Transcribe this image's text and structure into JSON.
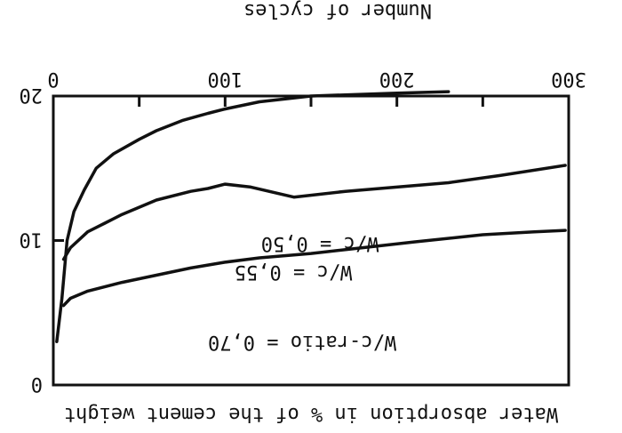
{
  "chart_data": {
    "type": "line",
    "xlabel": "Number of cycles",
    "ylabel": "Water absorption in % of the cement weight",
    "x_ticks": [
      0,
      100,
      200,
      300
    ],
    "y_ticks": [
      0,
      10,
      20
    ],
    "xlim": [
      0,
      300
    ],
    "ylim": [
      0,
      20
    ],
    "grid": false,
    "orientation": "displayed rotated 180 degrees (upside down)",
    "series": [
      {
        "name": "W/c = 0,50",
        "x": [
          6,
          10,
          20,
          40,
          60,
          80,
          100,
          120,
          150,
          180,
          210,
          250,
          280,
          298
        ],
        "y": [
          5.5,
          6.0,
          6.5,
          7.1,
          7.6,
          8.1,
          8.5,
          8.8,
          9.1,
          9.5,
          9.9,
          10.4,
          10.6,
          10.7
        ]
      },
      {
        "name": "W/c = 0,55",
        "x": [
          6,
          10,
          20,
          30,
          40,
          60,
          80,
          90,
          100,
          115,
          140,
          170,
          200,
          230,
          260,
          298
        ],
        "y": [
          8.7,
          9.5,
          10.6,
          11.2,
          11.8,
          12.8,
          13.4,
          13.6,
          13.9,
          13.7,
          13.0,
          13.4,
          13.7,
          14.0,
          14.5,
          15.2
        ]
      },
      {
        "name": "W/c-ratio = 0,70",
        "x": [
          2,
          5,
          8,
          12,
          18,
          25,
          35,
          50,
          60,
          75,
          90,
          100,
          120,
          150,
          200,
          230
        ],
        "y": [
          3.0,
          6.0,
          10.0,
          12.0,
          13.5,
          15.0,
          16.0,
          17.0,
          17.6,
          18.3,
          18.8,
          19.1,
          19.6,
          20.0,
          20.2,
          20.3
        ]
      }
    ]
  }
}
